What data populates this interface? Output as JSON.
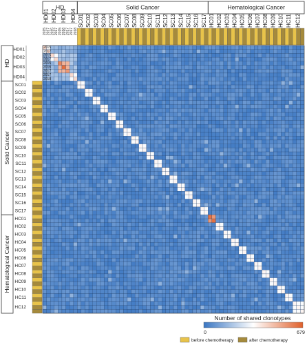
{
  "chart_data": {
    "type": "heatmap",
    "title": "",
    "colorbar": {
      "title": "Number of shared clonotypes",
      "min_label": "0",
      "max_label": "679",
      "vmin": 0,
      "vmax": 679,
      "colors": [
        "#3a76c2",
        "#ffffff",
        "#e0602b"
      ]
    },
    "groups": [
      {
        "name": "HD",
        "samples": [
          {
            "label": "HD01",
            "years": [
              "2015",
              "2017"
            ]
          },
          {
            "label": "HD02",
            "years": [
              "2015",
              "2017"
            ]
          },
          {
            "label": "HD03",
            "years": [
              "2015",
              "2016",
              "2017"
            ]
          },
          {
            "label": "HD04",
            "years": [
              "2017",
              "2018"
            ]
          }
        ]
      },
      {
        "name": "Solid Cancer",
        "samples": [
          {
            "label": "SC01"
          },
          {
            "label": "SC02"
          },
          {
            "label": "SC03"
          },
          {
            "label": "SC04"
          },
          {
            "label": "SC05"
          },
          {
            "label": "SC06"
          },
          {
            "label": "SC07"
          },
          {
            "label": "SC08"
          },
          {
            "label": "SC09"
          },
          {
            "label": "SC10"
          },
          {
            "label": "SC11"
          },
          {
            "label": "SC12"
          },
          {
            "label": "SC13"
          },
          {
            "label": "SC14"
          },
          {
            "label": "SC15"
          },
          {
            "label": "SC16"
          },
          {
            "label": "SC17"
          }
        ]
      },
      {
        "name": "Hematological Cancer",
        "samples": [
          {
            "label": "HC01"
          },
          {
            "label": "HC02"
          },
          {
            "label": "HC03"
          },
          {
            "label": "HC04"
          },
          {
            "label": "HC05"
          },
          {
            "label": "HC06"
          },
          {
            "label": "HC07"
          },
          {
            "label": "HC08"
          },
          {
            "label": "HC09"
          },
          {
            "label": "HC10"
          },
          {
            "label": "HC11"
          },
          {
            "label": "HC12",
            "timepoints": 3
          }
        ]
      }
    ],
    "values_description": "symmetric matrix; diagonal blocks near 679 (white/orange), off-diagonal near 0 (blue)",
    "legend": [
      {
        "label": "before chemotherapy",
        "color": "#e8c34a"
      },
      {
        "label": "after chemotherapy",
        "color": "#a58a3c"
      }
    ]
  }
}
